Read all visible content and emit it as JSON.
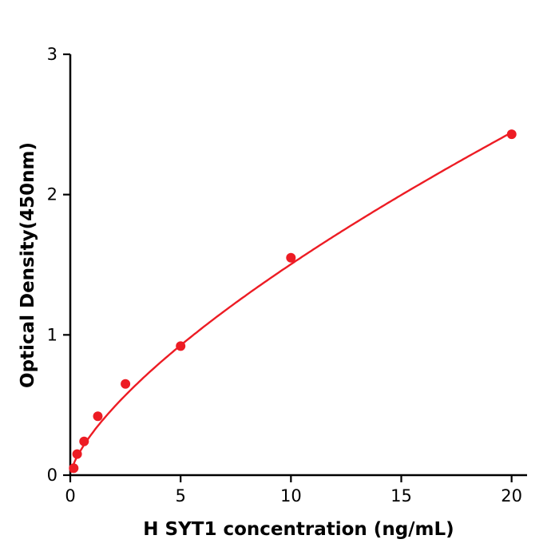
{
  "chart_data": {
    "type": "scatter",
    "title": "",
    "xlabel": "H  SYT1 concentration (ng/mL)",
    "ylabel": "Optical Density(450nm)",
    "x": [
      0.156,
      0.3125,
      0.625,
      1.25,
      2.5,
      5,
      10,
      20
    ],
    "y": [
      0.05,
      0.15,
      0.24,
      0.42,
      0.65,
      0.92,
      1.55,
      2.43
    ],
    "xlim": [
      0,
      20.7
    ],
    "ylim": [
      0,
      3
    ],
    "xticks": [
      0,
      5,
      10,
      15,
      20
    ],
    "yticks": [
      0,
      1,
      2,
      3
    ],
    "curve_fit": {
      "type": "power",
      "a": 0.3,
      "b": 0.7
    },
    "point_color": "#ed1c24",
    "line_color": "#ed1c24",
    "axis_color": "#000000",
    "grid": false,
    "legend": null
  }
}
